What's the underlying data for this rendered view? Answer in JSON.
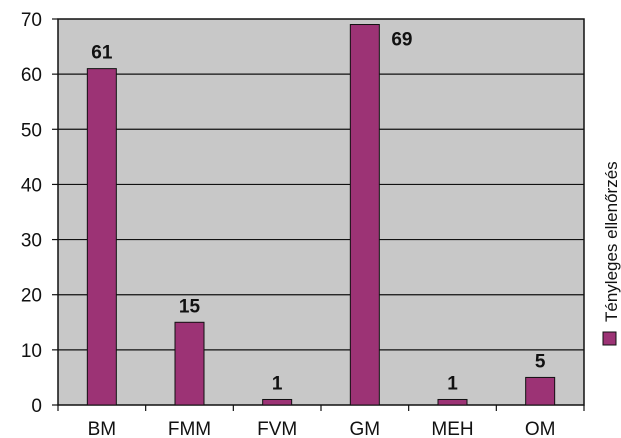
{
  "chart_data": {
    "type": "bar",
    "categories": [
      "BM",
      "FMM",
      "FVM",
      "GM",
      "MEH",
      "OM"
    ],
    "series": [
      {
        "name": "Tényleges ellenőrzés",
        "values": [
          61,
          15,
          1,
          69,
          1,
          5
        ],
        "color": "#9c3375"
      }
    ],
    "data_labels": [
      "61",
      "15",
      "1",
      "69",
      "1",
      "5"
    ],
    "ylim": [
      0,
      70
    ],
    "yticks": [
      0,
      10,
      20,
      30,
      40,
      50,
      60,
      70
    ],
    "ytick_labels": [
      "0",
      "10",
      "20",
      "30",
      "40",
      "50",
      "60",
      "70"
    ],
    "grid": true,
    "plot_background": "#c8c8c8",
    "legend_position": "right"
  }
}
